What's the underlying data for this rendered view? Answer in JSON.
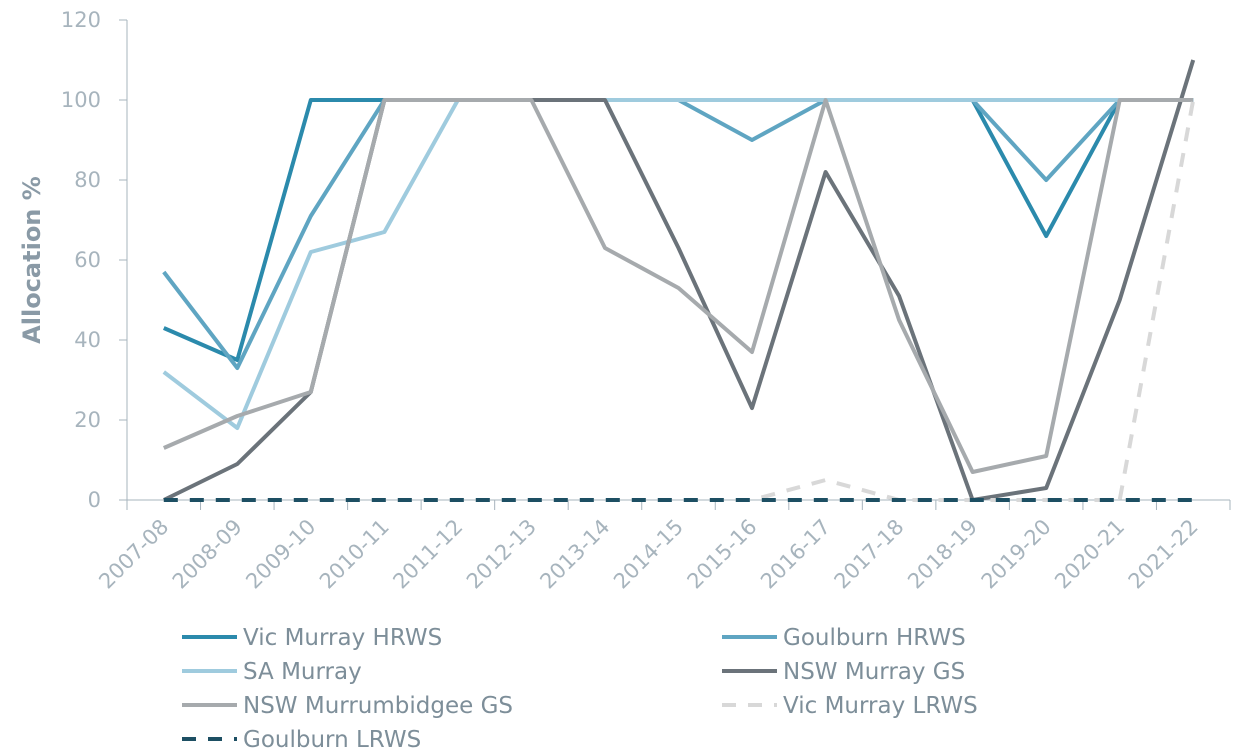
{
  "chart_data": {
    "type": "line",
    "title": "",
    "xlabel": "",
    "ylabel": "Allocation %",
    "ylim": [
      0,
      120
    ],
    "yticks": [
      0,
      20,
      40,
      60,
      80,
      100,
      120
    ],
    "grid": false,
    "legend_position": "bottom",
    "categories": [
      "2007-08",
      "2008-09",
      "2009-10",
      "2010-11",
      "2011-12",
      "2012-13",
      "2013-14",
      "2014-15",
      "2015-16",
      "2016-17",
      "2017-18",
      "2018-19",
      "2019-20",
      "2020-21",
      "2021-22"
    ],
    "series": [
      {
        "name": "Vic Murray HRWS",
        "color": "#2b8aac",
        "dash": false,
        "values": [
          43,
          35,
          100,
          100,
          100,
          100,
          100,
          100,
          100,
          100,
          100,
          100,
          66,
          100,
          100
        ]
      },
      {
        "name": "Goulburn HRWS",
        "color": "#5fa5c2",
        "dash": false,
        "values": [
          57,
          33,
          71,
          100,
          100,
          100,
          100,
          100,
          90,
          100,
          100,
          100,
          80,
          100,
          100
        ]
      },
      {
        "name": "SA Murray",
        "color": "#9fcbde",
        "dash": false,
        "values": [
          32,
          18,
          62,
          67,
          100,
          100,
          100,
          100,
          100,
          100,
          100,
          100,
          100,
          100,
          100
        ]
      },
      {
        "name": "NSW Murray GS",
        "color": "#6b737a",
        "dash": false,
        "values": [
          0,
          9,
          27,
          100,
          100,
          100,
          100,
          63,
          23,
          82,
          51,
          0,
          3,
          50,
          110
        ]
      },
      {
        "name": "NSW Murrumbidgee GS",
        "color": "#a6aaad",
        "dash": false,
        "values": [
          13,
          21,
          27,
          100,
          100,
          100,
          63,
          53,
          37,
          100,
          45,
          7,
          11,
          100,
          100
        ]
      },
      {
        "name": "Vic Murray LRWS",
        "color": "#d8d8d8",
        "dash": true,
        "values": [
          0,
          0,
          0,
          0,
          0,
          0,
          0,
          0,
          0,
          5,
          0,
          0,
          0,
          0,
          100
        ]
      },
      {
        "name": "Goulburn LRWS",
        "color": "#1d4f63",
        "dash": true,
        "values": [
          0,
          0,
          0,
          0,
          0,
          0,
          0,
          0,
          0,
          0,
          0,
          0,
          0,
          0,
          0
        ]
      }
    ]
  }
}
